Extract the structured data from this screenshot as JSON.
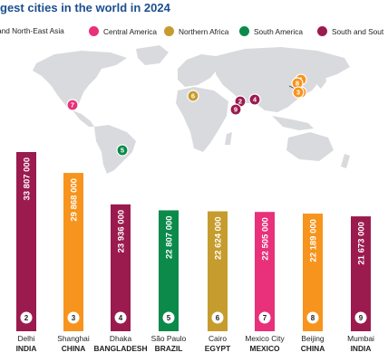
{
  "title": "gest cities in the world in 2024",
  "legend": [
    {
      "label": "and North-East Asia",
      "color": "#f7941d"
    },
    {
      "label": "Central America",
      "color": "#e8317a"
    },
    {
      "label": "Northern Africa",
      "color": "#c69c2e"
    },
    {
      "label": "South America",
      "color": "#0b8a4a"
    },
    {
      "label": "South and Sout",
      "color": "#9b1b4f"
    }
  ],
  "map_markers": [
    {
      "rank": "1",
      "color": "#f7941d"
    },
    {
      "rank": "10",
      "color": "#f7941d"
    },
    {
      "rank": "8",
      "color": "#f7941d"
    },
    {
      "rank": "3",
      "color": "#f7941d"
    },
    {
      "rank": "2",
      "color": "#9b1b4f"
    },
    {
      "rank": "4",
      "color": "#9b1b4f"
    },
    {
      "rank": "9",
      "color": "#9b1b4f"
    },
    {
      "rank": "6",
      "color": "#c69c2e"
    },
    {
      "rank": "7",
      "color": "#e8317a"
    },
    {
      "rank": "5",
      "color": "#0b8a4a"
    }
  ],
  "chart_data": {
    "type": "bar",
    "title": "gest cities in the world in 2024",
    "categories": [
      "Delhi",
      "Shanghai",
      "Dhaka",
      "São Paulo",
      "Cairo",
      "Mexico City",
      "Beijing",
      "Mumbai"
    ],
    "countries": [
      "INDIA",
      "CHINA",
      "BANGLADESH",
      "BRAZIL",
      "EGYPT",
      "MEXICO",
      "CHINA",
      "INDIA"
    ],
    "ranks": [
      "2",
      "3",
      "4",
      "5",
      "6",
      "7",
      "8",
      "9"
    ],
    "values": [
      33807000,
      29868000,
      23936000,
      22807000,
      22624000,
      22505000,
      22189000,
      21673000
    ],
    "value_labels": [
      "33 807 000",
      "29 868 000",
      "23 936 000",
      "22 807 000",
      "22 624 000",
      "22 505 000",
      "22 189 000",
      "21 673 000"
    ],
    "colors": [
      "#9b1b4f",
      "#f7941d",
      "#9b1b4f",
      "#0b8a4a",
      "#c69c2e",
      "#e8317a",
      "#f7941d",
      "#9b1b4f"
    ],
    "grid": false
  }
}
